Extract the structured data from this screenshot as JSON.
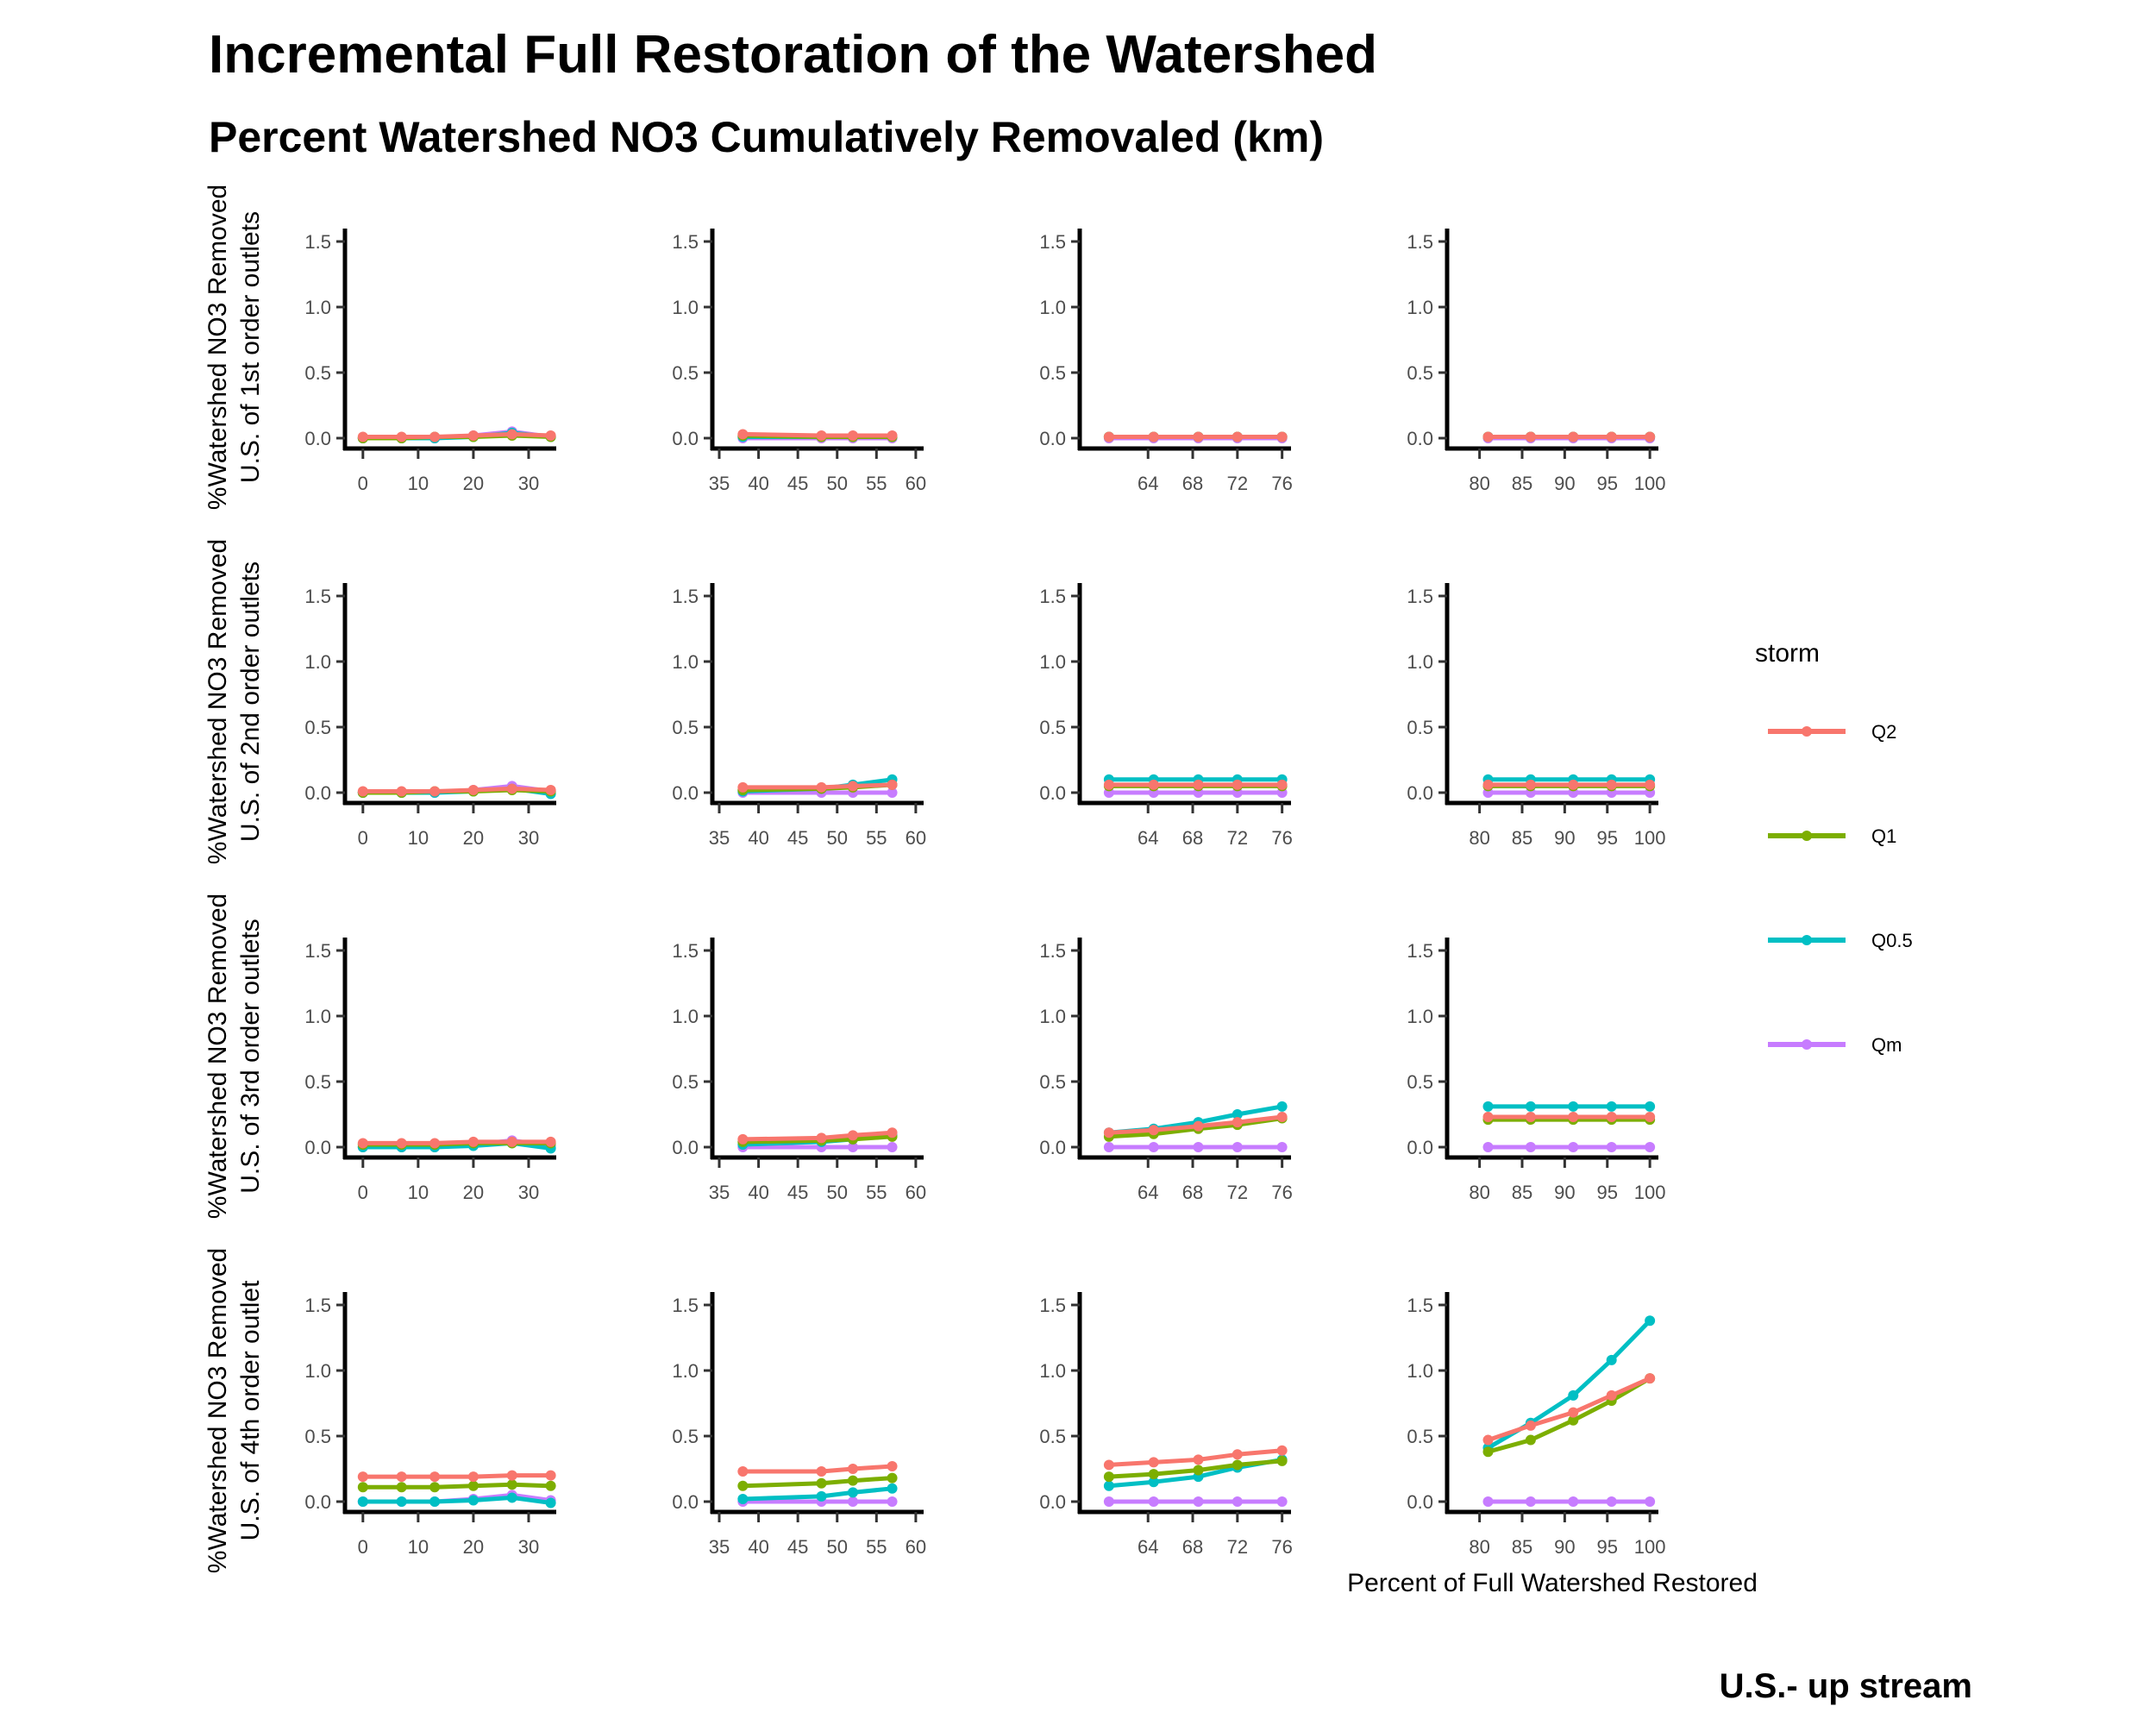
{
  "title": "Incremental Full Restoration of the Watershed",
  "subtitle": "Percent Watershed NO3 Cumulatively Removaled (km)",
  "caption": "U.S.- up stream",
  "chart_data": {
    "type": "line",
    "facet_layout": "4 rows x 4 columns",
    "xlabel": "Percent of Full Watershed Restored",
    "legend": {
      "title": "storm",
      "position": "right",
      "entries": [
        "Q2",
        "Q1",
        "Q0.5",
        "Qm"
      ]
    },
    "series_colors": {
      "Q2": "#F8766D",
      "Q1": "#7CAE00",
      "Q0.5": "#00BFC4",
      "Qm": "#C77CFF"
    },
    "ylim": [
      0,
      1.5
    ],
    "yticks": [
      0,
      0.5,
      1,
      1.5
    ],
    "ytick_labels": [
      "0.0",
      "0.5",
      "1.0",
      "1.5"
    ],
    "row_labels": [
      [
        "%Watershed NO3 Removed",
        "U.S. of 1st order outlets"
      ],
      [
        "%Watershed NO3 Removed",
        "U.S. of 2nd order outlets"
      ],
      [
        "%Watershed NO3 Removed",
        "U.S. of 3rd order outlets"
      ],
      [
        "%Watershed NO3 Removed",
        "U.S. of 4th order outlet"
      ]
    ],
    "columns": [
      {
        "xlim": [
          -2,
          35
        ],
        "xticks": [
          0,
          10,
          20,
          30
        ],
        "x": [
          0,
          7,
          13,
          20,
          27,
          34
        ]
      },
      {
        "xlim": [
          35,
          61
        ],
        "xticks": [
          35,
          40,
          45,
          50,
          55,
          60
        ],
        "x": [
          38,
          48,
          52,
          57
        ]
      },
      {
        "xlim": [
          58.5,
          76.8
        ],
        "xticks": [
          64,
          68,
          72,
          76
        ],
        "x": [
          60.5,
          64.5,
          68.5,
          72,
          76
        ]
      },
      {
        "xlim": [
          77,
          101
        ],
        "xticks": [
          80,
          85,
          90,
          95,
          100
        ],
        "x": [
          81,
          86,
          91,
          95.5,
          100
        ]
      }
    ],
    "panels": [
      [
        {
          "Q2": [
            0.01,
            0.01,
            0.01,
            0.02,
            0.03,
            0.02
          ],
          "Q1": [
            0,
            0,
            0.01,
            0.01,
            0.02,
            0.01
          ],
          "Q0.5": [
            0,
            0,
            0,
            0.01,
            0.04,
            0.01
          ],
          "Qm": [
            0,
            0,
            0,
            0.02,
            0.05,
            0.01
          ]
        },
        {
          "Q2": [
            0.03,
            0.02,
            0.02,
            0.02
          ],
          "Q1": [
            0.02,
            0.01,
            0.01,
            0.01
          ],
          "Q0.5": [
            0.01,
            0.01,
            0.01,
            0.01
          ],
          "Qm": [
            0,
            0,
            0,
            0
          ]
        },
        {
          "Q2": [
            0.01,
            0.01,
            0.01,
            0.01,
            0.01
          ],
          "Q1": [
            0.01,
            0.01,
            0.01,
            0.01,
            0.01
          ],
          "Q0.5": [
            0.01,
            0.01,
            0.01,
            0.01,
            0.01
          ],
          "Qm": [
            0,
            0,
            0,
            0,
            0
          ]
        },
        {
          "Q2": [
            0.01,
            0.01,
            0.01,
            0.01,
            0.01
          ],
          "Q1": [
            0.01,
            0.01,
            0.01,
            0.01,
            0.01
          ],
          "Q0.5": [
            0.01,
            0.01,
            0.01,
            0.01,
            0.01
          ],
          "Qm": [
            0,
            0,
            0,
            0,
            0
          ]
        }
      ],
      [
        {
          "Q2": [
            0.01,
            0.01,
            0.01,
            0.02,
            0.03,
            0.02
          ],
          "Q1": [
            0,
            0,
            0.01,
            0.01,
            0.02,
            0.01
          ],
          "Q0.5": [
            0,
            0,
            0,
            0.01,
            0.03,
            -0.01
          ],
          "Qm": [
            0,
            0,
            0,
            0.02,
            0.05,
            0.01
          ]
        },
        {
          "Q2": [
            0.04,
            0.04,
            0.05,
            0.06
          ],
          "Q1": [
            0.02,
            0.03,
            0.04,
            0.06
          ],
          "Q0.5": [
            0.01,
            0.03,
            0.06,
            0.1
          ],
          "Qm": [
            0,
            0,
            0,
            0
          ]
        },
        {
          "Q2": [
            0.06,
            0.06,
            0.06,
            0.06,
            0.06
          ],
          "Q1": [
            0.05,
            0.05,
            0.05,
            0.05,
            0.05
          ],
          "Q0.5": [
            0.1,
            0.1,
            0.1,
            0.1,
            0.1
          ],
          "Qm": [
            0,
            0,
            0,
            0,
            0
          ]
        },
        {
          "Q2": [
            0.06,
            0.06,
            0.06,
            0.06,
            0.06
          ],
          "Q1": [
            0.05,
            0.05,
            0.05,
            0.05,
            0.05
          ],
          "Q0.5": [
            0.1,
            0.1,
            0.1,
            0.1,
            0.1
          ],
          "Qm": [
            0,
            0,
            0,
            0,
            0
          ]
        }
      ],
      [
        {
          "Q2": [
            0.03,
            0.03,
            0.03,
            0.04,
            0.04,
            0.04
          ],
          "Q1": [
            0.02,
            0.02,
            0.02,
            0.03,
            0.03,
            0.03
          ],
          "Q0.5": [
            0,
            0,
            0,
            0.01,
            0.03,
            -0.01
          ],
          "Qm": [
            0,
            0,
            0,
            0.02,
            0.05,
            0.01
          ]
        },
        {
          "Q2": [
            0.06,
            0.07,
            0.09,
            0.11
          ],
          "Q1": [
            0.04,
            0.05,
            0.06,
            0.08
          ],
          "Q0.5": [
            0.02,
            0.04,
            0.06,
            0.09
          ],
          "Qm": [
            0,
            0,
            0,
            0
          ]
        },
        {
          "Q2": [
            0.11,
            0.13,
            0.16,
            0.19,
            0.23
          ],
          "Q1": [
            0.08,
            0.1,
            0.14,
            0.17,
            0.22
          ],
          "Q0.5": [
            0.11,
            0.14,
            0.19,
            0.25,
            0.31
          ],
          "Qm": [
            0,
            0,
            0,
            0,
            0
          ]
        },
        {
          "Q2": [
            0.23,
            0.23,
            0.23,
            0.23,
            0.23
          ],
          "Q1": [
            0.21,
            0.21,
            0.21,
            0.21,
            0.21
          ],
          "Q0.5": [
            0.31,
            0.31,
            0.31,
            0.31,
            0.31
          ],
          "Qm": [
            0,
            0,
            0,
            0,
            0
          ]
        }
      ],
      [
        {
          "Q2": [
            0.19,
            0.19,
            0.19,
            0.19,
            0.2,
            0.2
          ],
          "Q1": [
            0.11,
            0.11,
            0.11,
            0.12,
            0.13,
            0.12
          ],
          "Q0.5": [
            0,
            0,
            0,
            0.01,
            0.03,
            -0.01
          ],
          "Qm": [
            0,
            0,
            0,
            0.02,
            0.05,
            0.01
          ]
        },
        {
          "Q2": [
            0.23,
            0.23,
            0.25,
            0.27
          ],
          "Q1": [
            0.12,
            0.14,
            0.16,
            0.18
          ],
          "Q0.5": [
            0.02,
            0.04,
            0.07,
            0.1
          ],
          "Qm": [
            0,
            0,
            0,
            0
          ]
        },
        {
          "Q2": [
            0.28,
            0.3,
            0.32,
            0.36,
            0.39
          ],
          "Q1": [
            0.19,
            0.21,
            0.24,
            0.28,
            0.31
          ],
          "Q0.5": [
            0.12,
            0.15,
            0.19,
            0.26,
            0.32
          ],
          "Qm": [
            0,
            0,
            0,
            0,
            0
          ]
        },
        {
          "Q2": [
            0.47,
            0.58,
            0.68,
            0.81,
            0.94
          ],
          "Q1": [
            0.38,
            0.47,
            0.62,
            0.77,
            0.94
          ],
          "Q0.5": [
            0.41,
            0.6,
            0.81,
            1.08,
            1.38
          ],
          "Qm": [
            0,
            0,
            0,
            0,
            0
          ]
        }
      ]
    ]
  }
}
